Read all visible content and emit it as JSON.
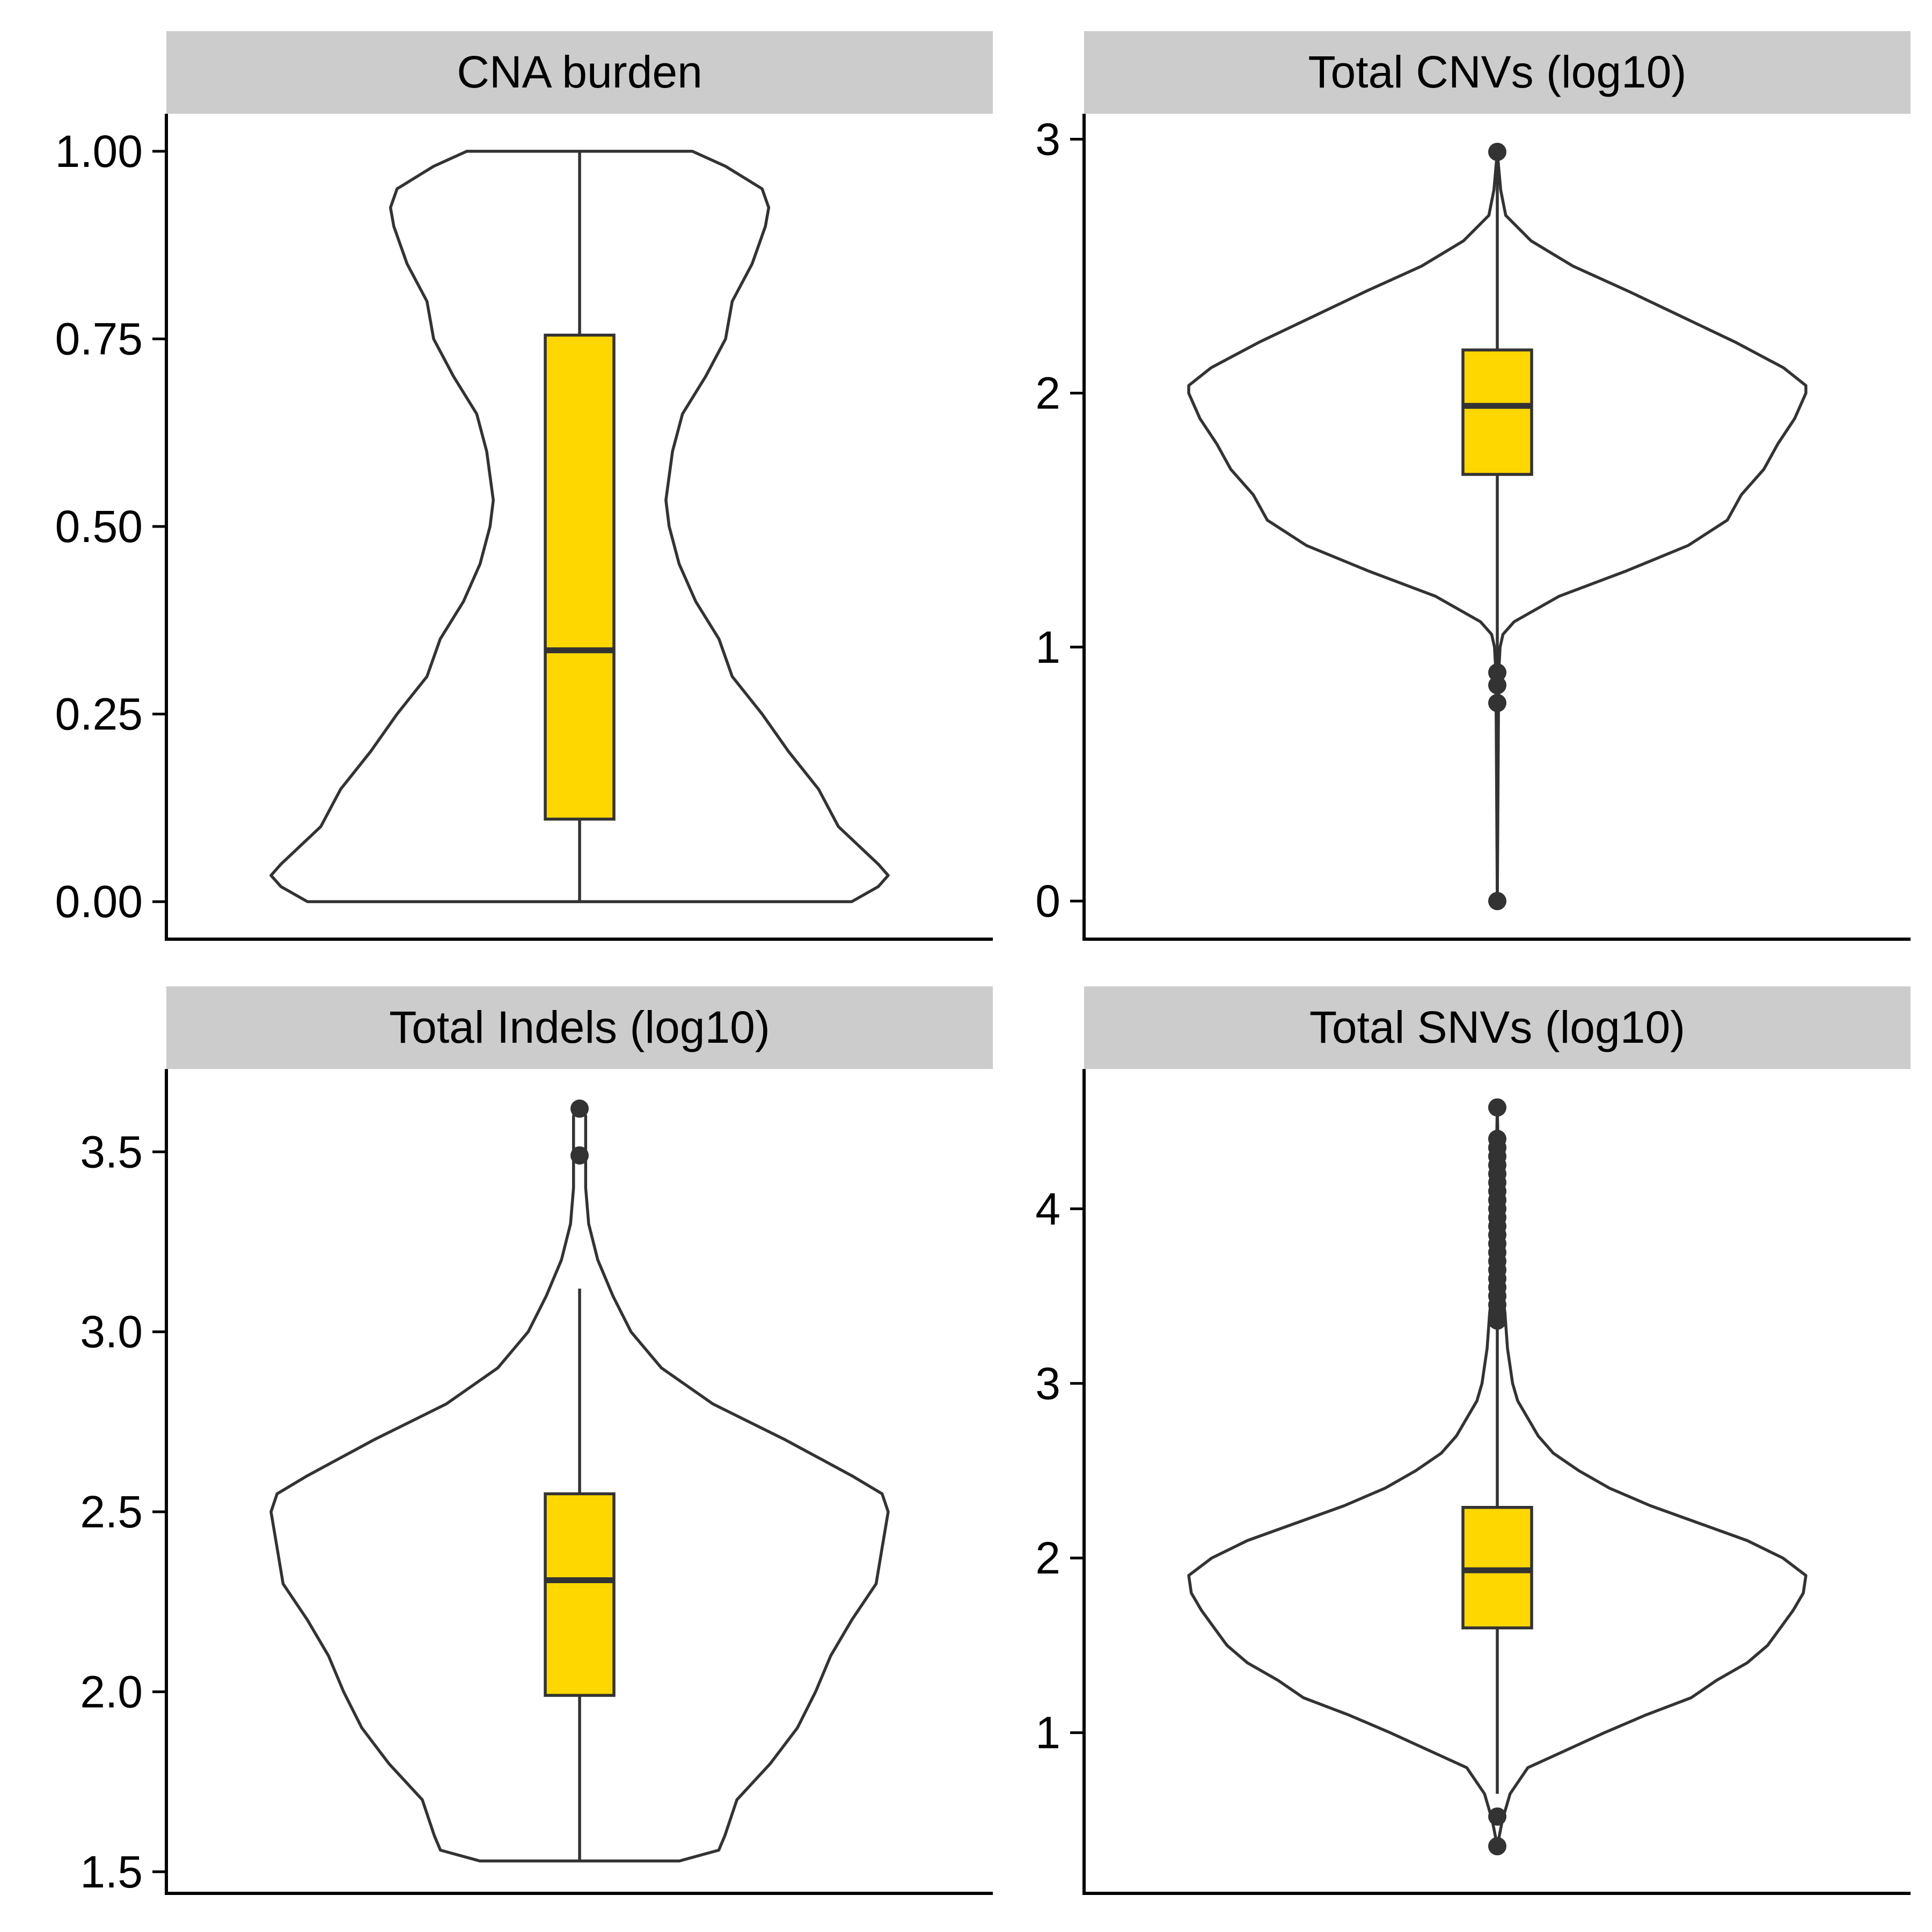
{
  "style": {
    "strip_bg": "#cccccc",
    "box_fill": "#FFD700",
    "outline": "#333333",
    "axis": "#000000",
    "background": "#ffffff"
  },
  "chart_data": [
    {
      "type": "violin",
      "title": "CNA burden",
      "ylim": [
        -0.05,
        1.05
      ],
      "yticks": [
        0,
        0.25,
        0.5,
        0.75,
        1
      ],
      "ytick_labels": [
        "0.00",
        "0.25",
        "0.50",
        "0.75",
        "1.00"
      ],
      "density": [
        [
          0,
          0.82
        ],
        [
          0.02,
          0.9
        ],
        [
          0.035,
          0.93
        ],
        [
          0.05,
          0.9
        ],
        [
          0.1,
          0.78
        ],
        [
          0.15,
          0.72
        ],
        [
          0.2,
          0.63
        ],
        [
          0.25,
          0.55
        ],
        [
          0.3,
          0.46
        ],
        [
          0.35,
          0.42
        ],
        [
          0.4,
          0.35
        ],
        [
          0.45,
          0.3
        ],
        [
          0.5,
          0.27
        ],
        [
          0.535,
          0.26
        ],
        [
          0.6,
          0.28
        ],
        [
          0.65,
          0.31
        ],
        [
          0.7,
          0.38
        ],
        [
          0.75,
          0.44
        ],
        [
          0.8,
          0.46
        ],
        [
          0.85,
          0.52
        ],
        [
          0.9,
          0.56
        ],
        [
          0.925,
          0.57
        ],
        [
          0.95,
          0.55
        ],
        [
          0.98,
          0.44
        ],
        [
          1.0,
          0.34
        ]
      ],
      "box": {
        "q1": 0.11,
        "median": 0.335,
        "q3": 0.755,
        "whisker_low": 0.0,
        "whisker_high": 1.0
      },
      "outliers": []
    },
    {
      "type": "violin",
      "title": "Total CNVs (log10)",
      "ylim": [
        -0.15,
        3.1
      ],
      "yticks": [
        0,
        1,
        2,
        3
      ],
      "ytick_labels": [
        "0",
        "1",
        "2",
        "3"
      ],
      "density": [
        [
          0.0,
          0.0
        ],
        [
          0.9,
          0.005
        ],
        [
          1.0,
          0.01
        ],
        [
          1.05,
          0.02
        ],
        [
          1.1,
          0.06
        ],
        [
          1.2,
          0.22
        ],
        [
          1.3,
          0.46
        ],
        [
          1.4,
          0.68
        ],
        [
          1.5,
          0.82
        ],
        [
          1.6,
          0.87
        ],
        [
          1.7,
          0.95
        ],
        [
          1.8,
          1.0
        ],
        [
          1.9,
          1.06
        ],
        [
          2.0,
          1.1
        ],
        [
          2.03,
          1.1
        ],
        [
          2.1,
          1.02
        ],
        [
          2.2,
          0.85
        ],
        [
          2.3,
          0.66
        ],
        [
          2.4,
          0.47
        ],
        [
          2.5,
          0.27
        ],
        [
          2.6,
          0.12
        ],
        [
          2.7,
          0.03
        ],
        [
          2.8,
          0.012
        ],
        [
          2.95,
          0.0
        ]
      ],
      "box": {
        "q1": 1.68,
        "median": 1.95,
        "q3": 2.17,
        "whisker_low": 0.0,
        "whisker_high": 2.95
      },
      "outliers": [
        0.0,
        0.78,
        0.85,
        0.9,
        2.95
      ]
    },
    {
      "type": "violin",
      "title": "Total Indels (log10)",
      "ylim": [
        1.44,
        3.73
      ],
      "yticks": [
        1.5,
        2.0,
        2.5,
        3.0,
        3.5
      ],
      "ytick_labels": [
        "1.5",
        "2.0",
        "2.5",
        "3.0",
        "3.5"
      ],
      "density": [
        [
          1.53,
          0.33
        ],
        [
          1.56,
          0.46
        ],
        [
          1.6,
          0.48
        ],
        [
          1.7,
          0.52
        ],
        [
          1.8,
          0.63
        ],
        [
          1.9,
          0.72
        ],
        [
          2.0,
          0.78
        ],
        [
          2.1,
          0.83
        ],
        [
          2.2,
          0.9
        ],
        [
          2.3,
          0.98
        ],
        [
          2.4,
          1.0
        ],
        [
          2.5,
          1.02
        ],
        [
          2.55,
          1.0
        ],
        [
          2.6,
          0.9
        ],
        [
          2.7,
          0.68
        ],
        [
          2.8,
          0.44
        ],
        [
          2.9,
          0.27
        ],
        [
          3.0,
          0.17
        ],
        [
          3.1,
          0.11
        ],
        [
          3.2,
          0.06
        ],
        [
          3.3,
          0.03
        ],
        [
          3.4,
          0.02
        ],
        [
          3.5,
          0.02
        ],
        [
          3.6,
          0.02
        ],
        [
          3.62,
          0.0
        ]
      ],
      "box": {
        "q1": 1.99,
        "median": 2.31,
        "q3": 2.55,
        "whisker_low": 1.53,
        "whisker_high": 3.12
      },
      "outliers": [
        3.49,
        3.62
      ]
    },
    {
      "type": "violin",
      "title": "Total SNVs (log10)",
      "ylim": [
        0.08,
        4.8
      ],
      "yticks": [
        1,
        2,
        3,
        4
      ],
      "ytick_labels": [
        "1",
        "2",
        "3",
        "4"
      ],
      "density": [
        [
          0.35,
          0.0
        ],
        [
          0.5,
          0.02
        ],
        [
          0.65,
          0.05
        ],
        [
          0.8,
          0.12
        ],
        [
          0.9,
          0.27
        ],
        [
          1.0,
          0.42
        ],
        [
          1.1,
          0.58
        ],
        [
          1.2,
          0.76
        ],
        [
          1.3,
          0.86
        ],
        [
          1.4,
          0.98
        ],
        [
          1.5,
          1.06
        ],
        [
          1.6,
          1.11
        ],
        [
          1.7,
          1.16
        ],
        [
          1.8,
          1.2
        ],
        [
          1.9,
          1.21
        ],
        [
          2.0,
          1.12
        ],
        [
          2.1,
          0.98
        ],
        [
          2.2,
          0.79
        ],
        [
          2.3,
          0.6
        ],
        [
          2.4,
          0.44
        ],
        [
          2.5,
          0.32
        ],
        [
          2.6,
          0.22
        ],
        [
          2.7,
          0.16
        ],
        [
          2.8,
          0.12
        ],
        [
          2.9,
          0.08
        ],
        [
          3.0,
          0.06
        ],
        [
          3.2,
          0.04
        ],
        [
          3.4,
          0.03
        ],
        [
          3.6,
          0.015
        ],
        [
          3.8,
          0.01
        ],
        [
          4.2,
          0.005
        ],
        [
          4.58,
          0.0
        ]
      ],
      "box": {
        "q1": 1.6,
        "median": 1.93,
        "q3": 2.29,
        "whisker_low": 0.65,
        "whisker_high": 3.35
      },
      "outliers": [
        0.35,
        0.52,
        3.36,
        3.4,
        3.45,
        3.5,
        3.55,
        3.6,
        3.65,
        3.7,
        3.75,
        3.8,
        3.85,
        3.9,
        3.95,
        4.0,
        4.05,
        4.1,
        4.15,
        4.2,
        4.25,
        4.3,
        4.35,
        4.4,
        4.58
      ]
    }
  ]
}
